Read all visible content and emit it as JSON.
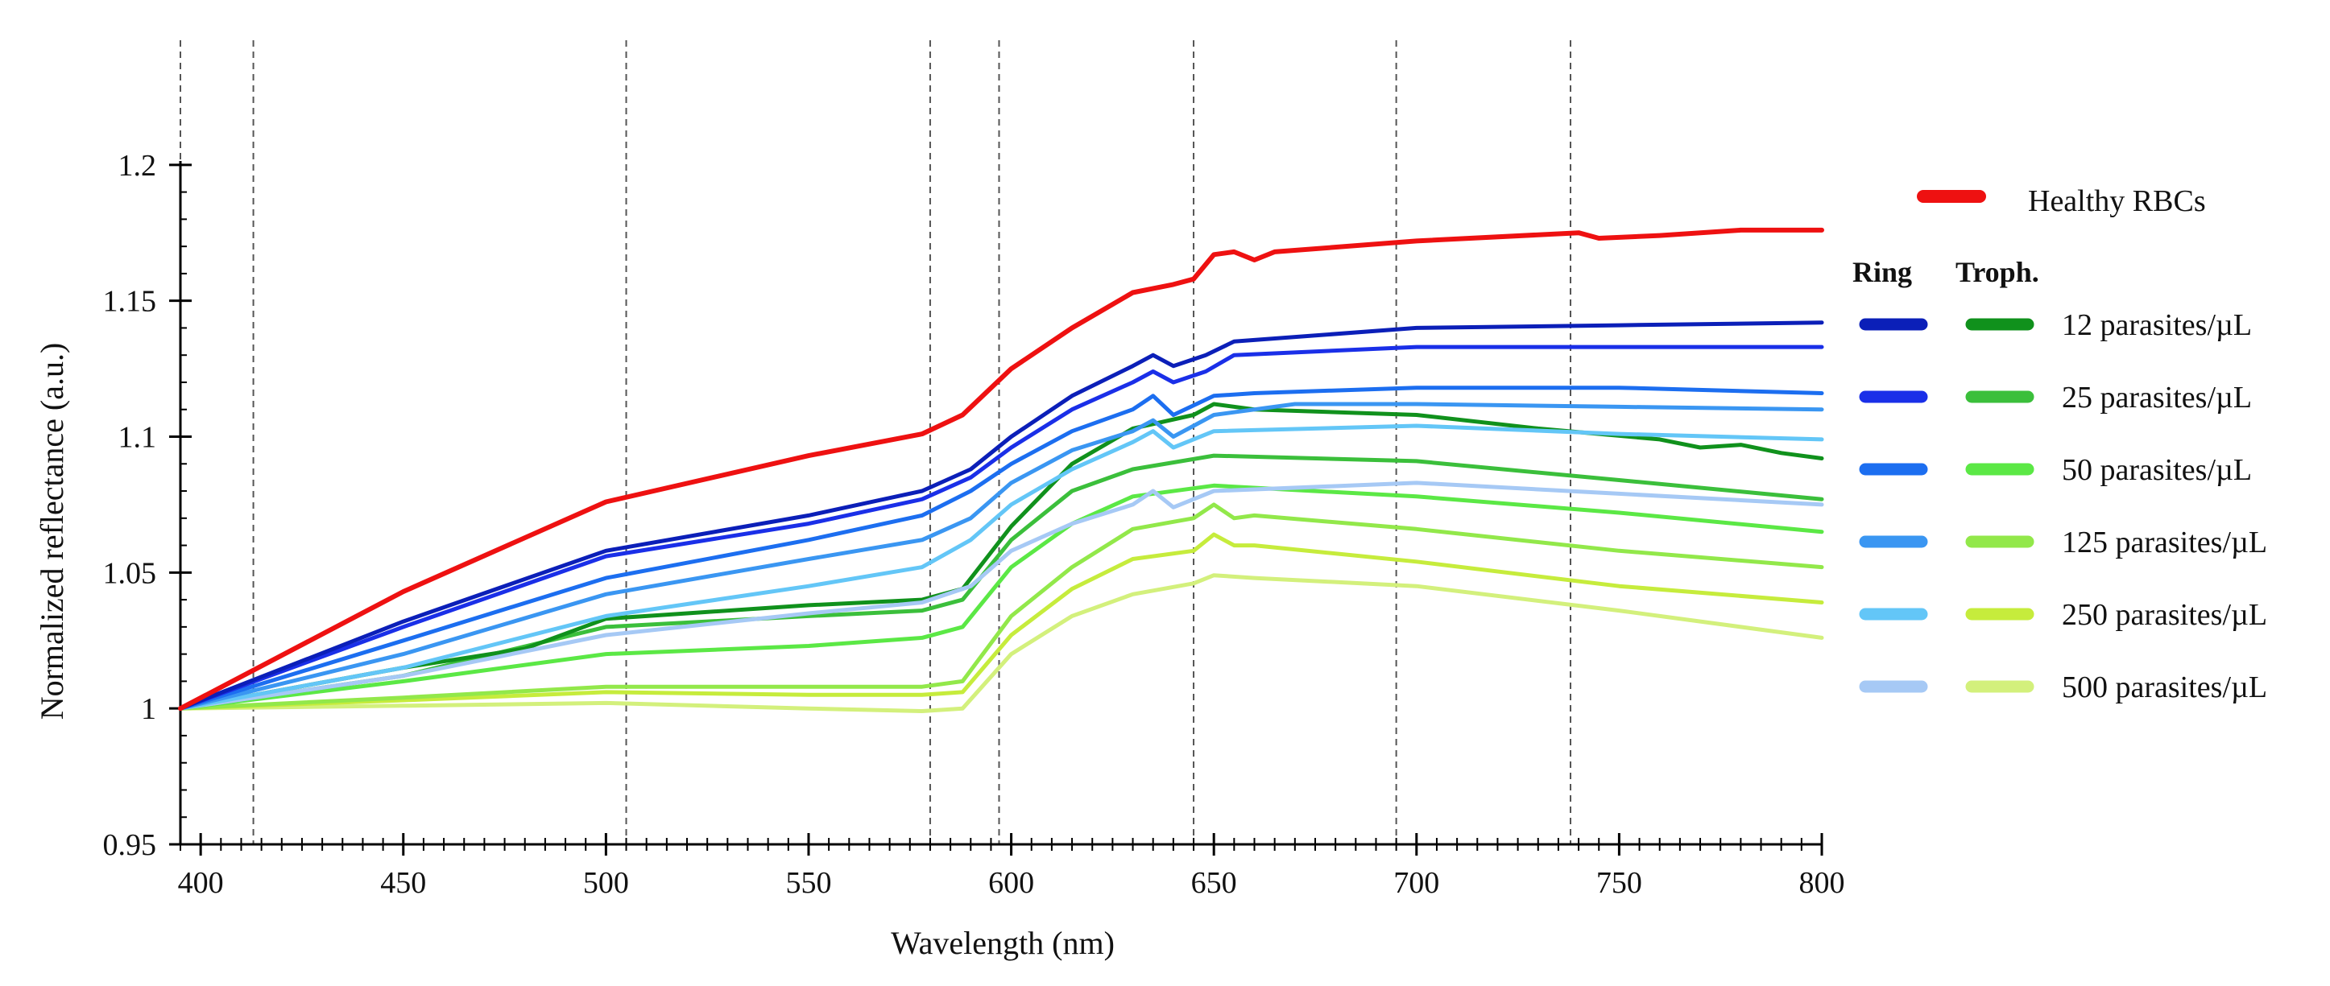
{
  "chart_data": {
    "type": "line",
    "xlabel": "Wavelength  (nm)",
    "ylabel": "Normalized  reflectance  (a.u.)",
    "xlim": [
      395,
      800
    ],
    "ylim": [
      0.95,
      1.25
    ],
    "x_ticks": [
      400,
      450,
      500,
      550,
      600,
      650,
      700,
      750,
      800
    ],
    "x_tick_labels": [
      "400",
      "450",
      "500",
      "550",
      "600",
      "650",
      "700",
      "750",
      "800"
    ],
    "y_ticks": [
      0.95,
      1.0,
      1.05,
      1.1,
      1.15,
      1.2
    ],
    "y_tick_labels": [
      "0.95",
      "1",
      "1.05",
      "1.1",
      "1.15",
      "1.2"
    ],
    "vertical_reference_lines": [
      395,
      413,
      505,
      580,
      597,
      645,
      695,
      738
    ],
    "legend": {
      "healthy_label": "Healthy RBCs",
      "ring_header": "Ring",
      "troph_header": "Troph.",
      "rows": [
        "12 parasites/µL",
        "25 parasites/µL",
        "50 parasites/µL",
        "125 parasites/µL",
        "250 parasites/µL",
        "500 parasites/µL"
      ]
    },
    "series": [
      {
        "name": "Healthy RBCs",
        "group": "healthy",
        "color": "#ee1111",
        "width": 6,
        "points": [
          [
            395,
            1.0
          ],
          [
            450,
            1.043
          ],
          [
            500,
            1.076
          ],
          [
            550,
            1.093
          ],
          [
            578,
            1.101
          ],
          [
            588,
            1.108
          ],
          [
            600,
            1.125
          ],
          [
            615,
            1.14
          ],
          [
            630,
            1.153
          ],
          [
            640,
            1.156
          ],
          [
            645,
            1.158
          ],
          [
            650,
            1.167
          ],
          [
            655,
            1.168
          ],
          [
            660,
            1.165
          ],
          [
            665,
            1.168
          ],
          [
            700,
            1.172
          ],
          [
            740,
            1.175
          ],
          [
            745,
            1.173
          ],
          [
            760,
            1.174
          ],
          [
            780,
            1.176
          ],
          [
            800,
            1.176
          ]
        ]
      },
      {
        "name": "Ring 12 parasites/µL",
        "group": "ring",
        "color": "#0b1fb8",
        "width": 5,
        "points": [
          [
            395,
            1.0
          ],
          [
            450,
            1.032
          ],
          [
            500,
            1.058
          ],
          [
            550,
            1.071
          ],
          [
            578,
            1.08
          ],
          [
            590,
            1.088
          ],
          [
            600,
            1.1
          ],
          [
            615,
            1.115
          ],
          [
            630,
            1.126
          ],
          [
            635,
            1.13
          ],
          [
            640,
            1.126
          ],
          [
            648,
            1.13
          ],
          [
            655,
            1.135
          ],
          [
            700,
            1.14
          ],
          [
            750,
            1.141
          ],
          [
            800,
            1.142
          ]
        ]
      },
      {
        "name": "Ring 25 parasites/µL",
        "group": "ring",
        "color": "#1a2fe8",
        "width": 5,
        "points": [
          [
            395,
            1.0
          ],
          [
            450,
            1.03
          ],
          [
            500,
            1.056
          ],
          [
            550,
            1.068
          ],
          [
            578,
            1.077
          ],
          [
            590,
            1.085
          ],
          [
            600,
            1.096
          ],
          [
            615,
            1.11
          ],
          [
            630,
            1.12
          ],
          [
            635,
            1.124
          ],
          [
            640,
            1.12
          ],
          [
            648,
            1.124
          ],
          [
            655,
            1.13
          ],
          [
            700,
            1.133
          ],
          [
            750,
            1.133
          ],
          [
            800,
            1.133
          ]
        ]
      },
      {
        "name": "Ring 50 parasites/µL",
        "group": "ring",
        "color": "#1c6ef0",
        "width": 5,
        "points": [
          [
            395,
            1.0
          ],
          [
            450,
            1.025
          ],
          [
            500,
            1.048
          ],
          [
            550,
            1.062
          ],
          [
            578,
            1.071
          ],
          [
            590,
            1.08
          ],
          [
            600,
            1.09
          ],
          [
            615,
            1.102
          ],
          [
            630,
            1.11
          ],
          [
            635,
            1.115
          ],
          [
            640,
            1.108
          ],
          [
            650,
            1.115
          ],
          [
            660,
            1.116
          ],
          [
            700,
            1.118
          ],
          [
            750,
            1.118
          ],
          [
            800,
            1.116
          ]
        ]
      },
      {
        "name": "Ring 125 parasites/µL",
        "group": "ring",
        "color": "#3a96f2",
        "width": 5,
        "points": [
          [
            395,
            1.0
          ],
          [
            450,
            1.02
          ],
          [
            500,
            1.042
          ],
          [
            550,
            1.055
          ],
          [
            578,
            1.062
          ],
          [
            590,
            1.07
          ],
          [
            600,
            1.083
          ],
          [
            615,
            1.095
          ],
          [
            630,
            1.102
          ],
          [
            635,
            1.106
          ],
          [
            640,
            1.1
          ],
          [
            650,
            1.108
          ],
          [
            670,
            1.112
          ],
          [
            700,
            1.112
          ],
          [
            750,
            1.111
          ],
          [
            800,
            1.11
          ]
        ]
      },
      {
        "name": "Ring 250 parasites/µL",
        "group": "ring",
        "color": "#63c6f7",
        "width": 5,
        "points": [
          [
            395,
            1.0
          ],
          [
            450,
            1.015
          ],
          [
            500,
            1.034
          ],
          [
            550,
            1.045
          ],
          [
            578,
            1.052
          ],
          [
            590,
            1.062
          ],
          [
            600,
            1.075
          ],
          [
            615,
            1.088
          ],
          [
            630,
            1.098
          ],
          [
            635,
            1.102
          ],
          [
            640,
            1.096
          ],
          [
            650,
            1.102
          ],
          [
            700,
            1.104
          ],
          [
            750,
            1.101
          ],
          [
            800,
            1.099
          ]
        ]
      },
      {
        "name": "Ring 500 parasites/µL",
        "group": "ring",
        "color": "#a6c9f5",
        "width": 5,
        "points": [
          [
            395,
            1.0
          ],
          [
            450,
            1.012
          ],
          [
            500,
            1.027
          ],
          [
            550,
            1.035
          ],
          [
            578,
            1.039
          ],
          [
            590,
            1.045
          ],
          [
            600,
            1.058
          ],
          [
            615,
            1.068
          ],
          [
            630,
            1.075
          ],
          [
            635,
            1.08
          ],
          [
            640,
            1.074
          ],
          [
            650,
            1.08
          ],
          [
            700,
            1.083
          ],
          [
            750,
            1.079
          ],
          [
            800,
            1.075
          ]
        ]
      },
      {
        "name": "Troph. 12 parasites/µL",
        "group": "troph",
        "color": "#10911c",
        "width": 5,
        "points": [
          [
            395,
            1.0
          ],
          [
            450,
            1.015
          ],
          [
            480,
            1.022
          ],
          [
            500,
            1.033
          ],
          [
            520,
            1.035
          ],
          [
            550,
            1.038
          ],
          [
            578,
            1.04
          ],
          [
            588,
            1.044
          ],
          [
            600,
            1.067
          ],
          [
            615,
            1.09
          ],
          [
            630,
            1.103
          ],
          [
            645,
            1.108
          ],
          [
            650,
            1.112
          ],
          [
            660,
            1.11
          ],
          [
            700,
            1.108
          ],
          [
            730,
            1.103
          ],
          [
            760,
            1.099
          ],
          [
            770,
            1.096
          ],
          [
            780,
            1.097
          ],
          [
            790,
            1.094
          ],
          [
            800,
            1.092
          ]
        ]
      },
      {
        "name": "Troph. 25 parasites/µL",
        "group": "troph",
        "color": "#3bbf3b",
        "width": 5,
        "points": [
          [
            395,
            1.0
          ],
          [
            450,
            1.012
          ],
          [
            500,
            1.03
          ],
          [
            550,
            1.034
          ],
          [
            578,
            1.036
          ],
          [
            588,
            1.04
          ],
          [
            600,
            1.062
          ],
          [
            615,
            1.08
          ],
          [
            630,
            1.088
          ],
          [
            650,
            1.093
          ],
          [
            700,
            1.091
          ],
          [
            750,
            1.084
          ],
          [
            800,
            1.077
          ]
        ]
      },
      {
        "name": "Troph. 50 parasites/µL",
        "group": "troph",
        "color": "#5be845",
        "width": 5,
        "points": [
          [
            395,
            1.0
          ],
          [
            450,
            1.01
          ],
          [
            500,
            1.02
          ],
          [
            550,
            1.023
          ],
          [
            578,
            1.026
          ],
          [
            588,
            1.03
          ],
          [
            600,
            1.052
          ],
          [
            615,
            1.068
          ],
          [
            630,
            1.078
          ],
          [
            650,
            1.082
          ],
          [
            700,
            1.078
          ],
          [
            750,
            1.072
          ],
          [
            800,
            1.065
          ]
        ]
      },
      {
        "name": "Troph. 125 parasites/µL",
        "group": "troph",
        "color": "#92e84a",
        "width": 5,
        "points": [
          [
            395,
            1.0
          ],
          [
            450,
            1.004
          ],
          [
            500,
            1.008
          ],
          [
            550,
            1.008
          ],
          [
            578,
            1.008
          ],
          [
            588,
            1.01
          ],
          [
            600,
            1.034
          ],
          [
            615,
            1.052
          ],
          [
            630,
            1.066
          ],
          [
            645,
            1.07
          ],
          [
            650,
            1.075
          ],
          [
            655,
            1.07
          ],
          [
            660,
            1.071
          ],
          [
            700,
            1.066
          ],
          [
            750,
            1.058
          ],
          [
            800,
            1.052
          ]
        ]
      },
      {
        "name": "Troph. 250 parasites/µL",
        "group": "troph",
        "color": "#c6ec3c",
        "width": 5,
        "points": [
          [
            395,
            1.0
          ],
          [
            450,
            1.003
          ],
          [
            500,
            1.006
          ],
          [
            550,
            1.005
          ],
          [
            578,
            1.005
          ],
          [
            588,
            1.006
          ],
          [
            600,
            1.027
          ],
          [
            615,
            1.044
          ],
          [
            630,
            1.055
          ],
          [
            645,
            1.058
          ],
          [
            650,
            1.064
          ],
          [
            655,
            1.06
          ],
          [
            660,
            1.06
          ],
          [
            700,
            1.054
          ],
          [
            750,
            1.045
          ],
          [
            800,
            1.039
          ]
        ]
      },
      {
        "name": "Troph. 500 parasites/µL",
        "group": "troph",
        "color": "#d3f07c",
        "width": 5,
        "points": [
          [
            395,
            1.0
          ],
          [
            450,
            1.001
          ],
          [
            500,
            1.002
          ],
          [
            550,
            1.0
          ],
          [
            578,
            0.999
          ],
          [
            588,
            1.0
          ],
          [
            600,
            1.02
          ],
          [
            615,
            1.034
          ],
          [
            630,
            1.042
          ],
          [
            645,
            1.046
          ],
          [
            650,
            1.049
          ],
          [
            660,
            1.048
          ],
          [
            700,
            1.045
          ],
          [
            750,
            1.036
          ],
          [
            800,
            1.026
          ]
        ]
      }
    ]
  }
}
